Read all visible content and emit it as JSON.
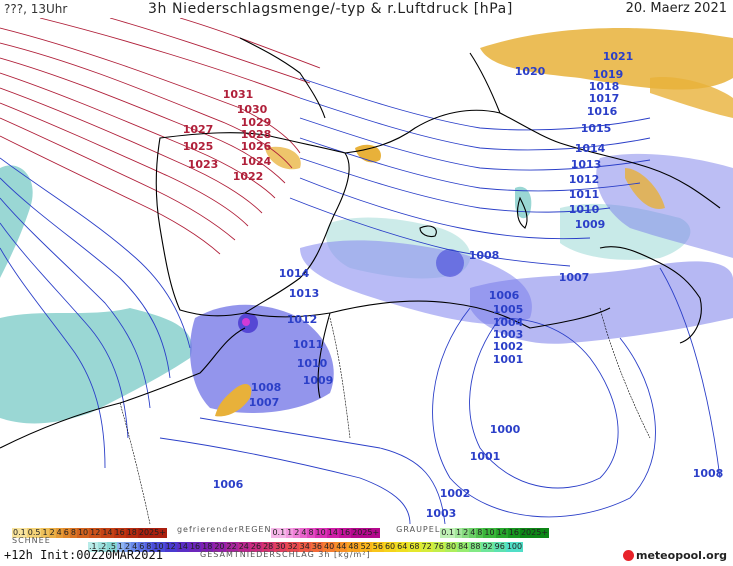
{
  "header": {
    "left": "???, 13Uhr",
    "title": "3h Niederschlagsmenge/-typ & r.Luftdruck [hPa]",
    "date": "20. Maerz 2021"
  },
  "colors": {
    "isobar_high": "#b0203a",
    "isobar_low": "#2b3fc8",
    "rain": "#6f72e6",
    "snow": "#8fd3d0",
    "freezing": "#e8b13a",
    "sea": "#ffffff",
    "coast": "#000000"
  },
  "isobar_labels": [
    {
      "text": "1031",
      "color": "high"
    },
    {
      "text": "1030",
      "color": "high"
    },
    {
      "text": "1029",
      "color": "high"
    },
    {
      "text": "1028",
      "color": "high"
    },
    {
      "text": "1027",
      "color": "high"
    },
    {
      "text": "1026",
      "color": "high"
    },
    {
      "text": "1025",
      "color": "high"
    },
    {
      "text": "1024",
      "color": "high"
    },
    {
      "text": "1023",
      "color": "high"
    },
    {
      "text": "1022",
      "color": "high"
    },
    {
      "text": "1021",
      "color": "low"
    },
    {
      "text": "1020",
      "color": "low"
    },
    {
      "text": "1019",
      "color": "low"
    },
    {
      "text": "1018",
      "color": "low"
    },
    {
      "text": "1017",
      "color": "low"
    },
    {
      "text": "1016",
      "color": "low"
    },
    {
      "text": "1015",
      "color": "low"
    },
    {
      "text": "1014",
      "color": "low"
    },
    {
      "text": "1013",
      "color": "low"
    },
    {
      "text": "1012",
      "color": "low"
    },
    {
      "text": "1011",
      "color": "low"
    },
    {
      "text": "1010",
      "color": "low"
    },
    {
      "text": "1009",
      "color": "low"
    },
    {
      "text": "1014",
      "color": "low"
    },
    {
      "text": "1013",
      "color": "low"
    },
    {
      "text": "1012",
      "color": "low"
    },
    {
      "text": "1011",
      "color": "low"
    },
    {
      "text": "1010",
      "color": "low"
    },
    {
      "text": "1009",
      "color": "low"
    },
    {
      "text": "1008",
      "color": "low"
    },
    {
      "text": "1007",
      "color": "low"
    },
    {
      "text": "1008",
      "color": "low"
    },
    {
      "text": "1007",
      "color": "low"
    },
    {
      "text": "1006",
      "color": "low"
    },
    {
      "text": "1005",
      "color": "low"
    },
    {
      "text": "1004",
      "color": "low"
    },
    {
      "text": "1003",
      "color": "low"
    },
    {
      "text": "1002",
      "color": "low"
    },
    {
      "text": "1001",
      "color": "low"
    },
    {
      "text": "1000",
      "color": "low"
    },
    {
      "text": "1001",
      "color": "low"
    },
    {
      "text": "1002",
      "color": "low"
    },
    {
      "text": "1003",
      "color": "low"
    },
    {
      "text": "1006",
      "color": "low"
    },
    {
      "text": "1008",
      "color": "low"
    }
  ],
  "legend": {
    "snow_title": "SCHNEE",
    "freezing_title": "gefrierenderREGEN",
    "graupel_title": "GRAUPEL",
    "total_title": "GESAMTNIEDERSCHLAG 3h [kg/m²]",
    "top_row_a": [
      "0.1",
      "0.5",
      "1",
      "2",
      "4",
      "6",
      "8",
      "10",
      "12",
      "14",
      "16",
      "18",
      "2025+"
    ],
    "top_row_b": [
      "0.1",
      "1",
      "2",
      "4",
      "8",
      "10",
      "14",
      "16",
      "2025+"
    ],
    "top_row_c": [
      "0.1",
      "1",
      "2",
      "4",
      "8",
      "10",
      "14",
      "16",
      "2025+"
    ],
    "bottom_row": [
      ".1",
      ".2",
      ".5",
      "1",
      "2",
      "4",
      "6",
      "8",
      "10",
      "12",
      "14",
      "16",
      "18",
      "20",
      "22",
      "24",
      "26",
      "28",
      "30",
      "32",
      "34",
      "36",
      "40",
      "44",
      "48",
      "52",
      "56",
      "60",
      "64",
      "68",
      "72",
      "76",
      "80",
      "84",
      "88",
      "92",
      "96",
      "100"
    ]
  },
  "footer": {
    "run": "+12h  Init:00Z20MAR2021",
    "logo": "meteopool.org"
  }
}
